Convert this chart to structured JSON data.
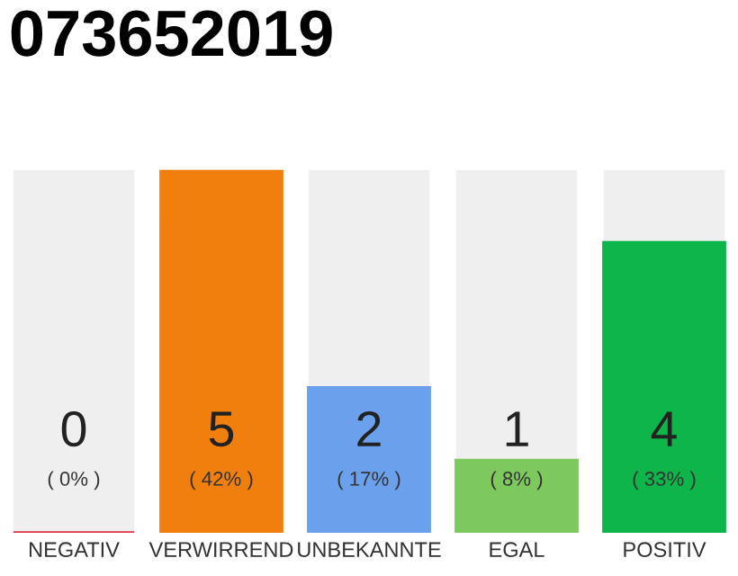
{
  "chart_data": {
    "type": "bar",
    "title": "073652019",
    "categories": [
      "NEGATIV",
      "VERWIRREND",
      "UNBEKANNTE",
      "EGAL",
      "POSITIV"
    ],
    "values": [
      0,
      5,
      2,
      1,
      4
    ],
    "colors": [
      "#e0344a",
      "#f07f0e",
      "#6aa0ec",
      "#7dc95e",
      "#0db54a"
    ],
    "value_labels": [
      "0\n( 0% )",
      "5\n( 42% )",
      "2\n( 17% )",
      "1\n( 8% )",
      "4\n( 33% )"
    ],
    "grid": false,
    "legend": false
  }
}
